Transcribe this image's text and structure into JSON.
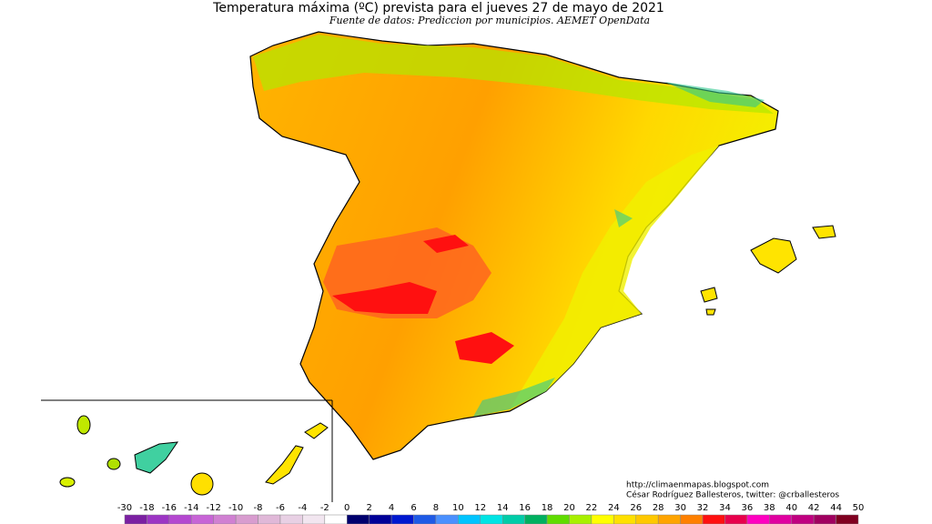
{
  "header": {
    "title": "Temperatura máxima (ºC) prevista para el jueves 27 de mayo de 2021",
    "subtitle": "Fuente de datos: Prediccion por municipios. AEMET OpenData"
  },
  "credits": [
    "http://climaenmapas.blogspot.com",
    "César Rodríguez Ballesteros, twitter: @crballesteros"
  ],
  "legend": {
    "ticks": [
      -30,
      -18,
      -16,
      -14,
      -12,
      -10,
      -8,
      -6,
      -4,
      -2,
      0,
      2,
      4,
      6,
      8,
      10,
      12,
      14,
      16,
      18,
      20,
      22,
      24,
      26,
      28,
      30,
      32,
      34,
      36,
      38,
      40,
      42,
      44,
      50
    ],
    "colors": [
      "#7b1fa2",
      "#9c35c4",
      "#b448d0",
      "#c764d6",
      "#d080d2",
      "#d89ccf",
      "#e0b8d8",
      "#e8d0e4",
      "#f2e6f0",
      "#ffffff",
      "#00006e",
      "#000098",
      "#0018d0",
      "#1e5ae6",
      "#4a90ff",
      "#00c4ff",
      "#00e4e4",
      "#00cca8",
      "#00b060",
      "#60dc00",
      "#a8f000",
      "#ffff00",
      "#ffe000",
      "#ffc800",
      "#ffa400",
      "#ff8000",
      "#ff1010",
      "#e8004c",
      "#ff00c0",
      "#e000a0",
      "#c00080",
      "#a00060",
      "#800020"
    ]
  }
}
